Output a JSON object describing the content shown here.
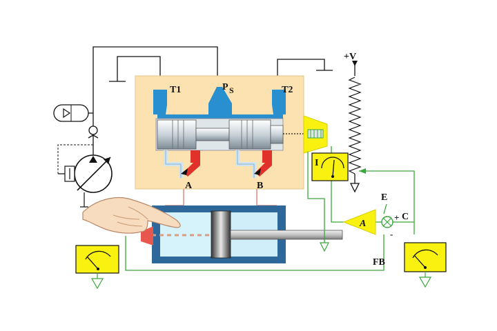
{
  "labels": {
    "t1": "T1",
    "ps_p": "P",
    "ps_s": "S",
    "t2": "T2",
    "port_a": "A",
    "port_b": "B",
    "supply": "+V",
    "current_meter": "I",
    "amplifier": "A",
    "error": "E",
    "command": "C",
    "plus": "+",
    "minus": "-",
    "feedback": "FB"
  },
  "colors": {
    "valve_body": "#fbe2b0",
    "port_blue": "#2a8fcf",
    "spool": "#dfe6ea",
    "cylinder": "#2e6799",
    "cyl_fluid": "#cfeefa",
    "pressure_red": "#e0312b",
    "meter_yellow": "#f9f110",
    "signal_green": "#3aa83a",
    "wire": "#111111"
  }
}
